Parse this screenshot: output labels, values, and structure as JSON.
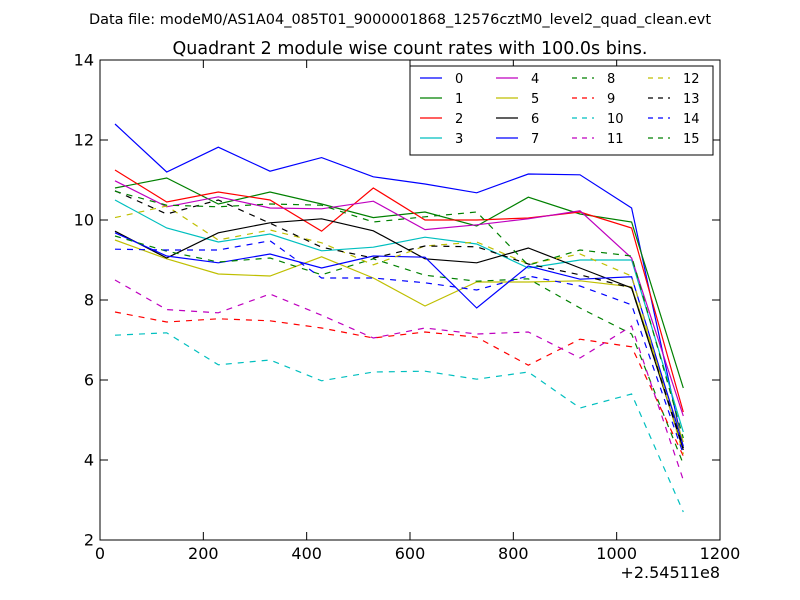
{
  "chart_data": {
    "type": "line",
    "suptitle": "Data file: modeM0/AS1A04_085T01_9000001868_12576cztM0_level2_quad_clean.evt",
    "title": "Quadrant 2 module wise count rates with 100.0s bins.",
    "xlabel": "",
    "ylabel": "",
    "x_offset_label": "+2.54511e8",
    "xlim": [
      0,
      1200
    ],
    "ylim": [
      2,
      14
    ],
    "xticks": [
      0,
      200,
      400,
      600,
      800,
      1000,
      1200
    ],
    "yticks": [
      2,
      4,
      6,
      8,
      10,
      12,
      14
    ],
    "x": [
      29,
      129,
      229,
      329,
      429,
      529,
      629,
      729,
      829,
      929,
      1029,
      1129
    ],
    "series": [
      {
        "name": "0",
        "color": "#0000ff",
        "dash": false,
        "values": [
          12.4,
          11.2,
          11.82,
          11.22,
          11.56,
          11.08,
          10.9,
          10.68,
          11.15,
          11.13,
          10.3,
          4.3
        ]
      },
      {
        "name": "1",
        "color": "#008000",
        "dash": false,
        "values": [
          10.8,
          11.05,
          10.4,
          10.7,
          10.4,
          10.06,
          10.2,
          9.85,
          10.57,
          10.15,
          9.95,
          5.8
        ]
      },
      {
        "name": "2",
        "color": "#ff0000",
        "dash": false,
        "values": [
          11.25,
          10.45,
          10.7,
          10.5,
          9.72,
          10.8,
          10.0,
          10.0,
          10.05,
          10.2,
          9.8,
          5.2
        ]
      },
      {
        "name": "3",
        "color": "#00bfbf",
        "dash": false,
        "values": [
          10.5,
          9.8,
          9.45,
          9.65,
          9.23,
          9.32,
          9.57,
          9.4,
          8.8,
          9.0,
          9.0,
          4.7
        ]
      },
      {
        "name": "4",
        "color": "#bf00bf",
        "dash": false,
        "values": [
          10.98,
          10.33,
          10.58,
          10.3,
          10.28,
          10.47,
          9.76,
          9.88,
          10.03,
          10.23,
          9.05,
          5.1
        ]
      },
      {
        "name": "5",
        "color": "#bfbf00",
        "dash": false,
        "values": [
          9.5,
          9.03,
          8.65,
          8.6,
          9.08,
          8.55,
          7.85,
          8.45,
          8.45,
          8.48,
          8.33,
          4.45
        ]
      },
      {
        "name": "6",
        "color": "#000000",
        "dash": false,
        "values": [
          9.72,
          9.05,
          9.68,
          9.93,
          10.03,
          9.73,
          9.03,
          8.93,
          9.3,
          8.8,
          8.3,
          4.25
        ]
      },
      {
        "name": "7",
        "color": "#0000ff",
        "dash": false,
        "values": [
          9.68,
          9.1,
          8.93,
          9.15,
          8.8,
          9.1,
          9.07,
          7.8,
          8.85,
          8.52,
          8.58,
          4.35
        ]
      },
      {
        "name": "8",
        "color": "#008000",
        "dash": true,
        "values": [
          9.6,
          9.22,
          8.95,
          9.05,
          8.63,
          9.03,
          8.62,
          8.47,
          8.53,
          7.8,
          7.15,
          3.9
        ]
      },
      {
        "name": "9",
        "color": "#ff0000",
        "dash": true,
        "values": [
          7.7,
          7.45,
          7.53,
          7.48,
          7.3,
          7.05,
          7.2,
          7.07,
          6.37,
          7.02,
          6.83,
          4.1
        ]
      },
      {
        "name": "10",
        "color": "#00bfbf",
        "dash": true,
        "values": [
          7.12,
          7.18,
          6.38,
          6.5,
          5.98,
          6.2,
          6.22,
          6.02,
          6.2,
          5.3,
          5.65,
          2.7
        ]
      },
      {
        "name": "11",
        "color": "#bf00bf",
        "dash": true,
        "values": [
          8.5,
          7.76,
          7.68,
          8.15,
          7.62,
          7.05,
          7.3,
          7.15,
          7.2,
          6.55,
          7.35,
          3.5
        ]
      },
      {
        "name": "12",
        "color": "#bfbf00",
        "dash": true,
        "values": [
          10.06,
          10.35,
          9.5,
          9.75,
          9.43,
          8.88,
          9.35,
          9.45,
          8.9,
          9.15,
          8.6,
          4.15
        ]
      },
      {
        "name": "13",
        "color": "#000000",
        "dash": true,
        "values": [
          10.73,
          10.15,
          10.5,
          9.92,
          9.32,
          9.05,
          9.35,
          9.33,
          8.9,
          8.63,
          8.3,
          4.3
        ]
      },
      {
        "name": "14",
        "color": "#0000ff",
        "dash": true,
        "values": [
          9.27,
          9.25,
          9.25,
          9.48,
          8.55,
          8.55,
          8.43,
          8.25,
          8.6,
          8.35,
          7.88,
          4.15
        ]
      },
      {
        "name": "15",
        "color": "#008000",
        "dash": true,
        "values": [
          10.72,
          10.37,
          10.33,
          10.4,
          10.37,
          9.95,
          10.08,
          10.2,
          8.87,
          9.25,
          9.1,
          4.55
        ]
      }
    ],
    "legend": {
      "placement": "top-right",
      "columns": 4
    }
  }
}
